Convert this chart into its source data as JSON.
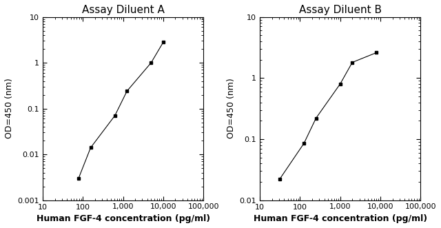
{
  "chart_A": {
    "title": "Assay Diluent A",
    "x": [
      78,
      156,
      625,
      1250,
      5000,
      10000
    ],
    "y": [
      0.003,
      0.014,
      0.07,
      0.24,
      1.0,
      2.8
    ],
    "xlim": [
      10,
      100000
    ],
    "ylim": [
      0.001,
      10
    ],
    "xlabel": "Human FGF-4 concentration (pg/ml)",
    "ylabel": "OD=450 (nm)",
    "xticks": [
      10,
      100,
      1000,
      10000,
      100000
    ],
    "xtick_labels": [
      "10",
      "100",
      "1,000",
      "10,000",
      "100,000"
    ],
    "yticks": [
      0.001,
      0.01,
      0.1,
      1,
      10
    ],
    "ytick_labels": [
      "0.001",
      "0.01",
      "0.1",
      "1",
      "10"
    ]
  },
  "chart_B": {
    "title": "Assay Diluent B",
    "x": [
      31,
      125,
      250,
      1000,
      2000,
      8000
    ],
    "y": [
      0.022,
      0.085,
      0.22,
      0.8,
      1.8,
      2.6
    ],
    "xlim": [
      10,
      100000
    ],
    "ylim": [
      0.01,
      10
    ],
    "xlabel": "Human FGF-4 concentration (pg/ml)",
    "ylabel": "OD=450 (nm)",
    "xticks": [
      10,
      100,
      1000,
      10000,
      100000
    ],
    "xtick_labels": [
      "10",
      "100",
      "1,000",
      "10,000",
      "100,000"
    ],
    "yticks": [
      0.01,
      0.1,
      1,
      10
    ],
    "ytick_labels": [
      "0.01",
      "0.1",
      "1",
      "10"
    ]
  },
  "line_color": "#000000",
  "marker": "s",
  "marker_size": 3.5,
  "marker_facecolor": "#000000",
  "bg_color": "#ffffff",
  "title_fontsize": 11,
  "ylabel_fontsize": 9,
  "tick_fontsize": 8,
  "xlabel_fontweight": "bold",
  "xlabel_fontsize": 9
}
